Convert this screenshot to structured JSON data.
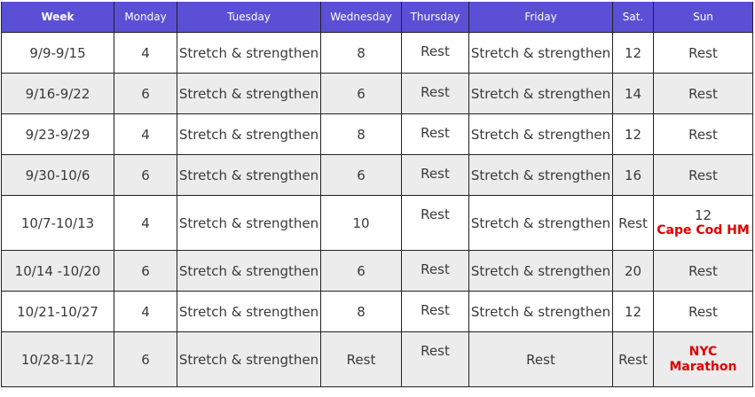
{
  "headers": [
    "Week",
    "Monday",
    "Tuesday",
    "Wednesday",
    "Thursday",
    "Friday",
    "Sat.",
    "Sun"
  ],
  "rows": [
    {
      "week": "9/9-9/15",
      "mon": "4",
      "tue": "Stretch & strengthen",
      "wed": "8",
      "thu": "Rest",
      "fri": "Stretch & strengthen",
      "sat": "12",
      "sun": "Rest",
      "sun_race": ""
    },
    {
      "week": "9/16-9/22",
      "mon": "6",
      "tue": "Stretch & strengthen",
      "wed": "6",
      "thu": "Rest",
      "fri": "Stretch & strengthen",
      "sat": "14",
      "sun": "Rest",
      "sun_race": ""
    },
    {
      "week": "9/23-9/29",
      "mon": "4",
      "tue": "Stretch & strengthen",
      "wed": "8",
      "thu": "Rest",
      "fri": "Stretch & strengthen",
      "sat": "12",
      "sun": "Rest",
      "sun_race": ""
    },
    {
      "week": "9/30-10/6",
      "mon": "6",
      "tue": "Stretch & strengthen",
      "wed": "6",
      "thu": "Rest",
      "fri": "Stretch & strengthen",
      "sat": "16",
      "sun": "Rest",
      "sun_race": ""
    },
    {
      "week": "10/7-10/13",
      "mon": "4",
      "tue": "Stretch & strengthen",
      "wed": "10",
      "thu": "Rest",
      "fri": "Stretch & strengthen",
      "sat": "Rest",
      "sun": "12",
      "sun_race": "Cape Cod HM"
    },
    {
      "week": "10/14 -10/20",
      "mon": "6",
      "tue": "Stretch & strengthen",
      "wed": "6",
      "thu": "Rest",
      "fri": "Stretch & strengthen",
      "sat": "20",
      "sun": "Rest",
      "sun_race": ""
    },
    {
      "week": "10/21-10/27",
      "mon": "4",
      "tue": "Stretch & strengthen",
      "wed": "8",
      "thu": "Rest",
      "fri": "Stretch & strengthen",
      "sat": "12",
      "sun": "Rest",
      "sun_race": ""
    },
    {
      "week": "10/28-11/2",
      "mon": "6",
      "tue": "Stretch & strengthen",
      "wed": "Rest",
      "thu": "Rest",
      "fri": "Rest",
      "sat": "Rest",
      "sun": "",
      "sun_race": "NYC Marathon"
    }
  ],
  "colors": {
    "header_bg": "#5b4fd6",
    "alt_row": "#ececec",
    "race": "#e00000"
  }
}
